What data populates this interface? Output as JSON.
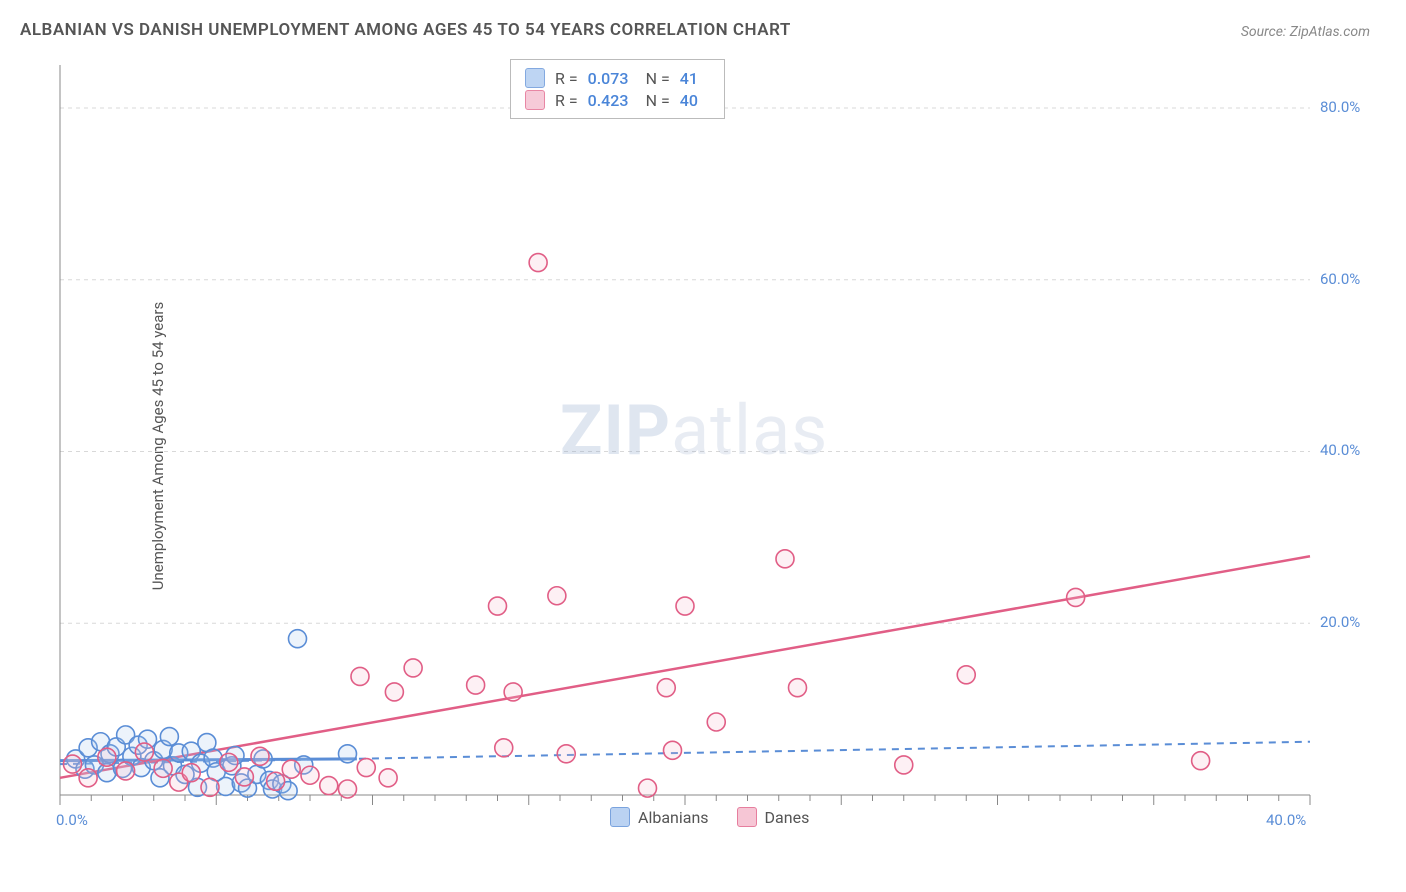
{
  "title": "ALBANIAN VS DANISH UNEMPLOYMENT AMONG AGES 45 TO 54 YEARS CORRELATION CHART",
  "source": "Source: ZipAtlas.com",
  "ylabel": "Unemployment Among Ages 45 to 54 years",
  "watermark_zip": "ZIP",
  "watermark_atlas": "atlas",
  "chart": {
    "type": "scatter",
    "xlim": [
      0,
      40
    ],
    "ylim": [
      0,
      85
    ],
    "xtick_start": 0,
    "xtick_end": 40,
    "xtick_minor_step": 1,
    "xtick_major_positions": [
      0,
      40
    ],
    "xtick_label_0": "0.0%",
    "xtick_label_40": "40.0%",
    "ytick_positions": [
      20,
      40,
      60,
      80
    ],
    "ytick_labels": [
      "20.0%",
      "40.0%",
      "60.0%",
      "80.0%"
    ],
    "grid_color": "#d8d8d8",
    "grid_dash": "4,4",
    "axis_color": "#888888",
    "tick_color": "#888888",
    "background_color": "#ffffff",
    "marker_radius": 9,
    "marker_stroke_width": 1.6,
    "marker_fill_opacity": 0.22,
    "series": [
      {
        "name": "Albanians",
        "color_stroke": "#5a8dd6",
        "color_fill": "#a9c7ef",
        "trend": {
          "x1": 0,
          "y1": 3.6,
          "x2": 40,
          "y2": 6.2,
          "dash": "7,6",
          "width": 2
        },
        "trend_solid": {
          "x1": 0,
          "y1": 4.0,
          "x2": 9.5,
          "y2": 4.2,
          "width": 3
        },
        "R_label": "R =",
        "R_value": "0.073",
        "N_label": "N =",
        "N_value": "41",
        "points": [
          [
            0.5,
            4.2
          ],
          [
            0.8,
            3.0
          ],
          [
            0.9,
            5.5
          ],
          [
            1.1,
            3.5
          ],
          [
            1.3,
            6.2
          ],
          [
            1.5,
            2.6
          ],
          [
            1.6,
            4.8
          ],
          [
            1.8,
            5.6
          ],
          [
            2.0,
            3.1
          ],
          [
            2.1,
            7.0
          ],
          [
            2.3,
            4.5
          ],
          [
            2.5,
            5.8
          ],
          [
            2.6,
            3.2
          ],
          [
            2.8,
            6.5
          ],
          [
            3.0,
            4.0
          ],
          [
            3.2,
            2.0
          ],
          [
            3.3,
            5.3
          ],
          [
            3.5,
            6.8
          ],
          [
            3.6,
            3.4
          ],
          [
            3.8,
            4.9
          ],
          [
            4.0,
            2.4
          ],
          [
            4.2,
            5.1
          ],
          [
            4.4,
            0.9
          ],
          [
            4.5,
            3.7
          ],
          [
            4.7,
            6.1
          ],
          [
            4.9,
            4.3
          ],
          [
            5.0,
            2.7
          ],
          [
            5.3,
            1.0
          ],
          [
            5.5,
            3.4
          ],
          [
            5.6,
            4.6
          ],
          [
            5.8,
            1.4
          ],
          [
            6.0,
            0.8
          ],
          [
            6.3,
            2.4
          ],
          [
            6.5,
            4.2
          ],
          [
            6.7,
            1.7
          ],
          [
            6.8,
            0.7
          ],
          [
            7.1,
            1.3
          ],
          [
            7.3,
            0.5
          ],
          [
            7.6,
            18.2
          ],
          [
            7.8,
            3.5
          ],
          [
            9.2,
            4.8
          ]
        ]
      },
      {
        "name": "Danes",
        "color_stroke": "#e15e86",
        "color_fill": "#f4b9cb",
        "trend": {
          "x1": 0,
          "y1": 2.0,
          "x2": 40,
          "y2": 27.8,
          "dash": "",
          "width": 2.5
        },
        "R_label": "R =",
        "R_value": "0.423",
        "N_label": "N =",
        "N_value": "40",
        "points": [
          [
            0.4,
            3.6
          ],
          [
            0.9,
            2.0
          ],
          [
            1.5,
            4.4
          ],
          [
            2.1,
            2.8
          ],
          [
            2.7,
            5.0
          ],
          [
            3.3,
            3.1
          ],
          [
            3.8,
            1.5
          ],
          [
            4.2,
            2.6
          ],
          [
            4.8,
            0.9
          ],
          [
            5.4,
            3.8
          ],
          [
            5.9,
            2.1
          ],
          [
            6.4,
            4.5
          ],
          [
            6.9,
            1.6
          ],
          [
            7.4,
            3.0
          ],
          [
            8.0,
            2.3
          ],
          [
            8.6,
            1.1
          ],
          [
            9.2,
            0.7
          ],
          [
            9.6,
            13.8
          ],
          [
            9.8,
            3.2
          ],
          [
            10.5,
            2.0
          ],
          [
            10.7,
            12.0
          ],
          [
            11.3,
            14.8
          ],
          [
            13.3,
            12.8
          ],
          [
            14.0,
            22.0
          ],
          [
            14.2,
            5.5
          ],
          [
            14.5,
            12.0
          ],
          [
            15.3,
            62.0
          ],
          [
            15.9,
            23.2
          ],
          [
            16.2,
            4.8
          ],
          [
            18.8,
            0.8
          ],
          [
            19.4,
            12.5
          ],
          [
            19.6,
            5.2
          ],
          [
            20.0,
            22.0
          ],
          [
            21.0,
            8.5
          ],
          [
            23.2,
            27.5
          ],
          [
            23.6,
            12.5
          ],
          [
            27.0,
            3.5
          ],
          [
            29.0,
            14.0
          ],
          [
            32.5,
            23.0
          ],
          [
            36.5,
            4.0
          ]
        ]
      }
    ],
    "bottom_legend": [
      {
        "label": "Albanians",
        "stroke": "#5a8dd6",
        "fill": "#a9c7ef"
      },
      {
        "label": "Danes",
        "stroke": "#e15e86",
        "fill": "#f4b9cb"
      }
    ]
  }
}
